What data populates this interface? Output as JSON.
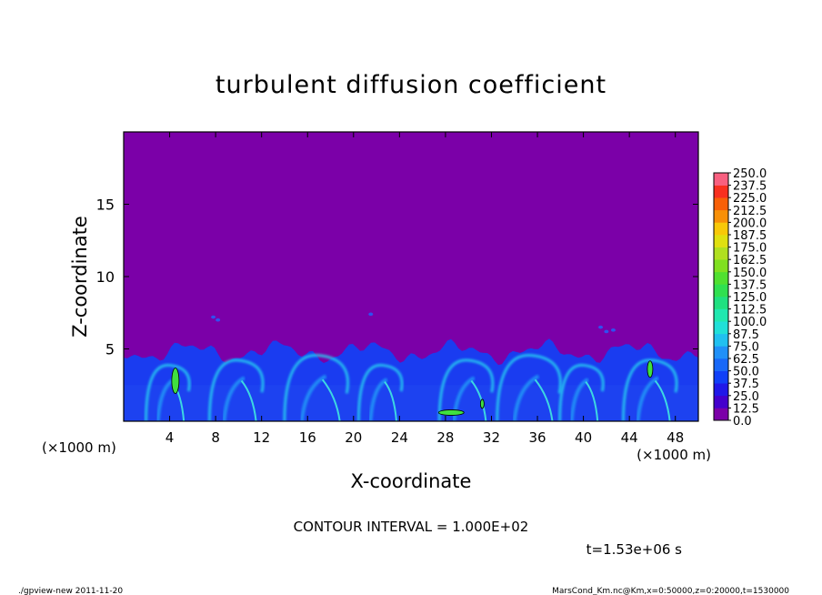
{
  "chart_data": {
    "type": "heatmap",
    "title": "turbulent diffusion coefficient",
    "xlabel": "X-coordinate",
    "ylabel": "Z-coordinate",
    "x_unit": "(×1000 m)",
    "x_unit_right": "(×1000 m)",
    "xlim": [
      0,
      50
    ],
    "ylim": [
      0,
      20
    ],
    "x_ticks": [
      4,
      8,
      12,
      16,
      20,
      24,
      28,
      32,
      36,
      40,
      44,
      48
    ],
    "y_ticks": [
      5,
      10,
      15
    ],
    "colorbar": {
      "levels": [
        0.0,
        12.5,
        25.0,
        37.5,
        50.0,
        62.5,
        75.0,
        87.5,
        100.0,
        112.5,
        125.0,
        137.5,
        150.0,
        162.5,
        175.0,
        187.5,
        200.0,
        212.5,
        225.0,
        237.5,
        250.0
      ],
      "labels": [
        "0.0",
        "12.5",
        "25.0",
        "37.5",
        "50.0",
        "62.5",
        "75.0",
        "87.5",
        "100.0",
        "112.5",
        "125.0",
        "137.5",
        "150.0",
        "162.5",
        "175.0",
        "187.5",
        "200.0",
        "212.5",
        "225.0",
        "237.5",
        "250.0"
      ],
      "colors": [
        "#7b00a8",
        "#4400cc",
        "#2018e8",
        "#1040f8",
        "#1868f8",
        "#2090f8",
        "#20c0f0",
        "#20e0d8",
        "#20e8b0",
        "#20e080",
        "#30e050",
        "#50e030",
        "#80e020",
        "#b0e020",
        "#e0e010",
        "#f8c808",
        "#f89008",
        "#f86008",
        "#f83020",
        "#f86080"
      ]
    },
    "contour_interval_text": "CONTOUR INTERVAL = 1.000E+02",
    "time_text": "t=1.53e+06 s"
  },
  "footer": {
    "left": "./gpview-new   2011-11-20",
    "right": "MarsCond_Km.nc@Km,x=0:50000,z=0:20000,t=1530000"
  }
}
